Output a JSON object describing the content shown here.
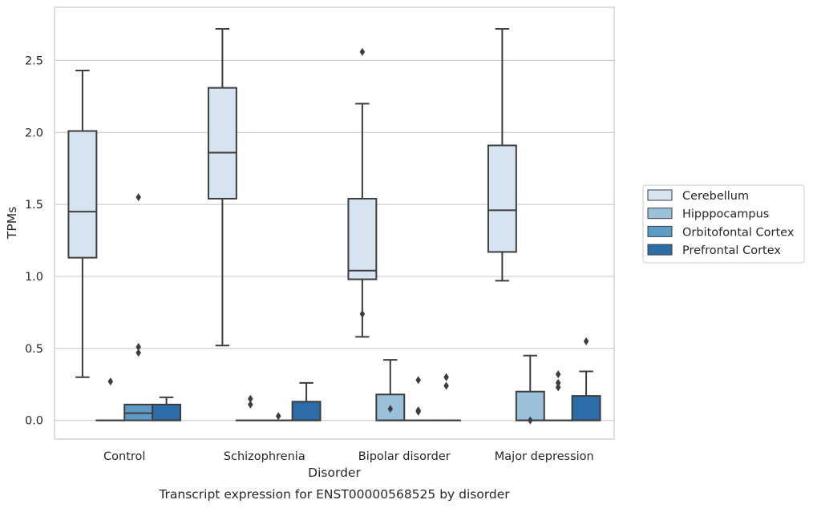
{
  "chart_data": {
    "type": "box",
    "caption": "Transcript expression for ENST00000568525 by disorder",
    "xlabel": "Disorder",
    "ylabel": "TPMs",
    "ylim": [
      -0.13,
      2.87
    ],
    "yticks": [
      "0.0",
      "0.5",
      "1.0",
      "1.5",
      "2.0",
      "2.5"
    ],
    "categories": [
      "Control",
      "Schizophrenia",
      "Bipolar disorder",
      "Major depression"
    ],
    "grid": "horizontal",
    "legend_position": "right",
    "series": [
      {
        "name": "Cerebellum",
        "color": "#d6e4f1",
        "boxes": [
          {
            "q1": 1.13,
            "median": 1.45,
            "q3": 2.01,
            "whislo": 0.3,
            "whishi": 2.43,
            "fliers": []
          },
          {
            "q1": 1.54,
            "median": 1.86,
            "q3": 2.31,
            "whislo": 0.52,
            "whishi": 2.72,
            "fliers": []
          },
          {
            "q1": 0.98,
            "median": 1.04,
            "q3": 1.54,
            "whislo": 0.58,
            "whishi": 2.2,
            "fliers": [
              2.56,
              0.74
            ]
          },
          {
            "q1": 1.17,
            "median": 1.46,
            "q3": 1.91,
            "whislo": 0.97,
            "whishi": 2.72,
            "fliers": []
          }
        ]
      },
      {
        "name": "Hipppocampus",
        "color": "#9ac0da",
        "boxes": [
          {
            "q1": 0.0,
            "median": 0.0,
            "q3": 0.0,
            "whislo": 0.0,
            "whishi": 0.0,
            "fliers": [
              0.27
            ]
          },
          {
            "q1": 0.0,
            "median": 0.0,
            "q3": 0.0,
            "whislo": 0.0,
            "whishi": 0.0,
            "fliers": [
              0.11,
              0.15
            ]
          },
          {
            "q1": 0.0,
            "median": 0.0,
            "q3": 0.18,
            "whislo": 0.0,
            "whishi": 0.42,
            "fliers": [
              0.08
            ]
          },
          {
            "q1": 0.0,
            "median": 0.0,
            "q3": 0.2,
            "whislo": 0.0,
            "whishi": 0.45,
            "fliers": [
              0.0
            ]
          }
        ]
      },
      {
        "name": "Orbitofontal Cortex",
        "color": "#5b9bc6",
        "boxes": [
          {
            "q1": 0.0,
            "median": 0.05,
            "q3": 0.11,
            "whislo": 0.0,
            "whishi": 0.11,
            "fliers": [
              1.55,
              0.51,
              0.47
            ]
          },
          {
            "q1": 0.0,
            "median": 0.0,
            "q3": 0.0,
            "whislo": 0.0,
            "whishi": 0.0,
            "fliers": [
              0.03
            ]
          },
          {
            "q1": 0.0,
            "median": 0.0,
            "q3": 0.0,
            "whislo": 0.0,
            "whishi": 0.0,
            "fliers": [
              0.28,
              0.07,
              0.06
            ]
          },
          {
            "q1": 0.0,
            "median": 0.0,
            "q3": 0.0,
            "whislo": 0.0,
            "whishi": 0.0,
            "fliers": [
              0.32,
              0.26,
              0.23
            ]
          }
        ]
      },
      {
        "name": "Prefrontal Cortex",
        "color": "#2b6ca9",
        "boxes": [
          {
            "q1": 0.0,
            "median": 0.0,
            "q3": 0.11,
            "whislo": 0.0,
            "whishi": 0.16,
            "fliers": []
          },
          {
            "q1": 0.0,
            "median": 0.0,
            "q3": 0.13,
            "whislo": 0.0,
            "whishi": 0.26,
            "fliers": []
          },
          {
            "q1": 0.0,
            "median": 0.0,
            "q3": 0.0,
            "whislo": 0.0,
            "whishi": 0.0,
            "fliers": [
              0.3,
              0.24
            ]
          },
          {
            "q1": 0.0,
            "median": 0.0,
            "q3": 0.17,
            "whislo": 0.0,
            "whishi": 0.34,
            "fliers": [
              0.55
            ]
          }
        ]
      }
    ]
  }
}
